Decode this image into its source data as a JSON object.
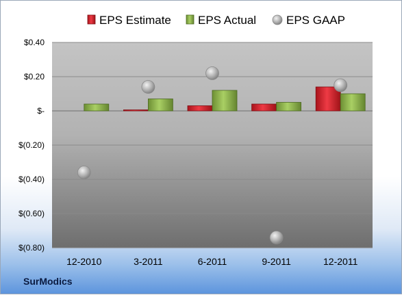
{
  "company": "SurModics",
  "colors": {
    "estimate": "#c8202c",
    "actual": "#8bb24a",
    "gaap": "#a6a6a6"
  },
  "chart_data": {
    "type": "bar",
    "categories": [
      "12-2010",
      "3-2011",
      "6-2011",
      "9-2011",
      "12-2011"
    ],
    "series": [
      {
        "name": "EPS Estimate",
        "kind": "bar",
        "values": [
          null,
          0.0,
          0.03,
          0.04,
          0.14
        ]
      },
      {
        "name": "EPS Actual",
        "kind": "bar",
        "values": [
          0.04,
          0.07,
          0.12,
          0.05,
          0.1
        ]
      },
      {
        "name": "EPS GAAP",
        "kind": "marker",
        "values": [
          -0.36,
          0.14,
          0.22,
          -0.74,
          0.15
        ]
      }
    ],
    "ylim": [
      -0.8,
      0.4
    ],
    "yticks": [
      0.4,
      0.2,
      0.0,
      -0.2,
      -0.4,
      -0.6,
      -0.8
    ],
    "ytick_labels": [
      "$0.40",
      "$0.20",
      "$-",
      "$(0.20)",
      "$(0.40)",
      "$(0.60)",
      "$(0.80)"
    ],
    "grid": true,
    "legend": "top",
    "title": "",
    "xlabel": "",
    "ylabel": ""
  }
}
